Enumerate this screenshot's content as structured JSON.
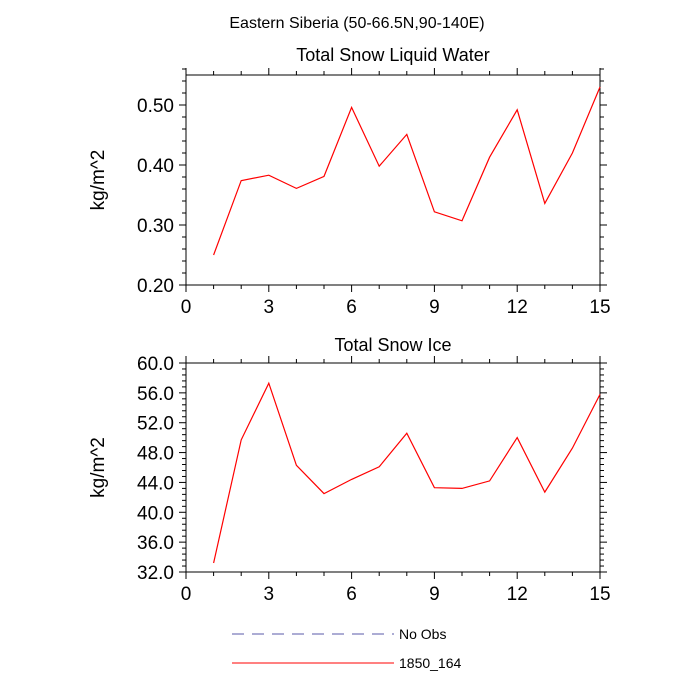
{
  "figure": {
    "suptitle": "Eastern Siberia (50-66.5N,90-140E)"
  },
  "chart_data": [
    {
      "type": "line",
      "title": "Total Snow Liquid Water",
      "xlabel": "",
      "ylabel": "kg/m^2",
      "xlim": [
        0,
        15
      ],
      "ylim": [
        0.2,
        0.55
      ],
      "xticks": [
        0,
        3,
        6,
        9,
        12,
        15
      ],
      "xtick_labels": [
        "0",
        "3",
        "6",
        "9",
        "12",
        "15"
      ],
      "yticks": [
        0.2,
        0.3,
        0.4,
        0.5
      ],
      "ytick_labels": [
        "0.20",
        "0.30",
        "0.40",
        "0.50"
      ],
      "grid": false,
      "series": [
        {
          "name": "1850_164",
          "color": "#ff0000",
          "x": [
            1,
            2,
            3,
            4,
            5,
            6,
            7,
            8,
            9,
            10,
            11,
            12,
            13,
            14,
            15
          ],
          "values": [
            0.25,
            0.374,
            0.383,
            0.361,
            0.381,
            0.496,
            0.398,
            0.451,
            0.322,
            0.307,
            0.413,
            0.492,
            0.336,
            0.42,
            0.53
          ]
        }
      ]
    },
    {
      "type": "line",
      "title": "Total Snow Ice",
      "xlabel": "",
      "ylabel": "kg/m^2",
      "xlim": [
        0,
        15
      ],
      "ylim": [
        32,
        60
      ],
      "xticks": [
        0,
        3,
        6,
        9,
        12,
        15
      ],
      "xtick_labels": [
        "0",
        "3",
        "6",
        "9",
        "12",
        "15"
      ],
      "yticks": [
        32,
        36,
        40,
        44,
        48,
        52,
        56,
        60
      ],
      "ytick_labels": [
        "32.0",
        "36.0",
        "40.0",
        "44.0",
        "48.0",
        "52.0",
        "56.0",
        "60.0"
      ],
      "grid": false,
      "series": [
        {
          "name": "1850_164",
          "color": "#ff0000",
          "x": [
            1,
            2,
            3,
            4,
            5,
            6,
            7,
            8,
            9,
            10,
            11,
            12,
            13,
            14,
            15
          ],
          "values": [
            33.2,
            49.7,
            57.3,
            46.3,
            42.5,
            44.4,
            46.1,
            50.6,
            43.3,
            43.2,
            44.2,
            50.0,
            42.7,
            48.6,
            55.8
          ]
        }
      ]
    }
  ],
  "legend": {
    "placement": "bottom-center",
    "entries": [
      {
        "label": "No Obs",
        "color": "#5a5aa8",
        "style": "dashed"
      },
      {
        "label": "1850_164",
        "color": "#ff0000",
        "style": "solid"
      }
    ]
  }
}
